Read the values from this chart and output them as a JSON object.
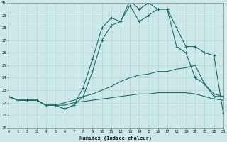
{
  "xlabel": "Humidex (Indice chaleur)",
  "bg_color": "#cde8e8",
  "grid_color": "#b0d8d8",
  "line_color": "#1a6e6a",
  "hours": [
    0,
    1,
    2,
    3,
    4,
    5,
    6,
    7,
    8,
    9,
    10,
    11,
    12,
    13,
    14,
    15,
    16,
    17,
    18,
    19,
    20,
    21,
    22,
    23
  ],
  "line_main": [
    22.5,
    22.2,
    22.2,
    22.2,
    21.8,
    21.8,
    21.5,
    21.8,
    22.5,
    24.5,
    27.0,
    28.2,
    28.5,
    29.8,
    28.5,
    29.0,
    29.5,
    29.5,
    28.0,
    26.5,
    26.5,
    26.0,
    25.8,
    21.2
  ],
  "line_upper": [
    22.5,
    22.2,
    22.2,
    22.2,
    21.8,
    21.8,
    21.5,
    21.8,
    23.2,
    25.5,
    28.0,
    28.8,
    28.5,
    30.2,
    29.5,
    30.0,
    29.5,
    29.5,
    26.5,
    26.0,
    24.0,
    23.5,
    22.5,
    22.5
  ],
  "line_mid": [
    22.5,
    22.2,
    22.2,
    22.2,
    21.8,
    21.8,
    22.0,
    22.2,
    22.5,
    22.7,
    23.0,
    23.3,
    23.7,
    24.0,
    24.2,
    24.3,
    24.5,
    24.5,
    24.7,
    24.8,
    25.0,
    23.5,
    22.7,
    22.5
  ],
  "line_lower": [
    22.5,
    22.2,
    22.2,
    22.2,
    21.8,
    21.8,
    21.8,
    22.0,
    22.1,
    22.2,
    22.3,
    22.4,
    22.5,
    22.6,
    22.7,
    22.7,
    22.8,
    22.8,
    22.8,
    22.8,
    22.7,
    22.5,
    22.3,
    22.2
  ],
  "ylim": [
    20,
    30
  ],
  "yticks": [
    20,
    21,
    22,
    23,
    24,
    25,
    26,
    27,
    28,
    29,
    30
  ],
  "xlim": [
    0,
    23
  ],
  "xticks": [
    0,
    1,
    2,
    3,
    4,
    5,
    6,
    7,
    8,
    9,
    10,
    11,
    12,
    13,
    14,
    15,
    16,
    17,
    18,
    19,
    20,
    21,
    22,
    23
  ]
}
